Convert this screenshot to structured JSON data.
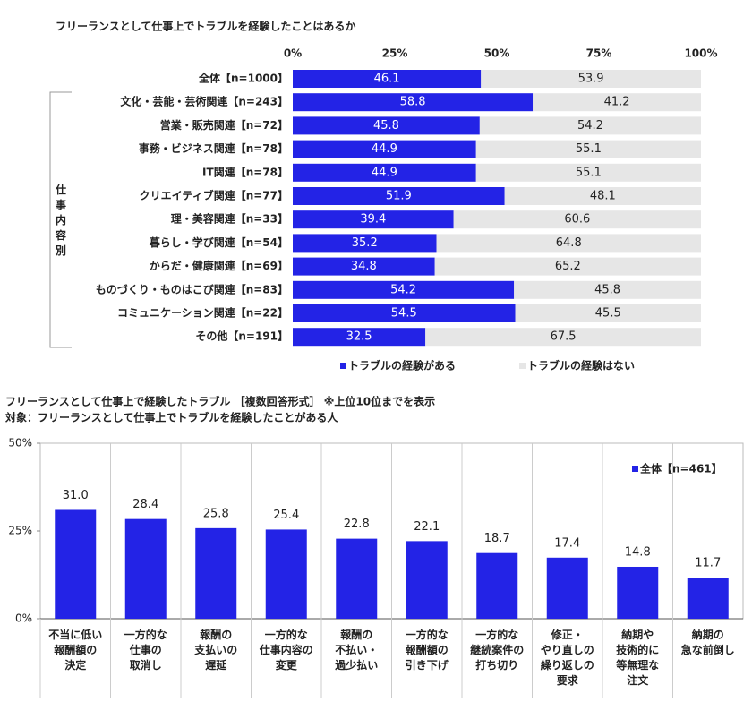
{
  "chart_data": [
    {
      "type": "stacked_barh",
      "title": "フリーランスとして仕事上でトラブルを経験したことはあるか",
      "categories": [
        "全体【n=1000】",
        "文化・芸能・芸術関連【n=243】",
        "営業・販売関連【n=72】",
        "事務・ビジネス関連【n=78】",
        "IT関連【n=78】",
        "クリエイティブ関連【n=77】",
        "理・美容関連【n=33】",
        "暮らし・学び関連【n=54】",
        "からだ・健康関連【n=69】",
        "ものづくり・ものはこび関連【n=83】",
        "コミュニケーション関連【n=22】",
        "その他【n=191】"
      ],
      "group_label": "仕事内容別",
      "series": [
        {
          "name": "トラブルの経験がある",
          "color": "#2323e6",
          "values": [
            46.1,
            58.8,
            45.8,
            44.9,
            44.9,
            51.9,
            39.4,
            35.2,
            34.8,
            54.2,
            54.5,
            32.5
          ]
        },
        {
          "name": "トラブルの経験はない",
          "color": "#e6e6e6",
          "values": [
            53.9,
            41.2,
            54.2,
            55.1,
            55.1,
            48.1,
            60.6,
            64.8,
            65.2,
            45.8,
            45.5,
            67.5
          ]
        }
      ],
      "xlim": [
        0,
        100
      ],
      "xticks": [
        {
          "value": 0,
          "label": "0%"
        },
        {
          "value": 25,
          "label": "25%"
        },
        {
          "value": 50,
          "label": "50%"
        },
        {
          "value": 75,
          "label": "75%"
        },
        {
          "value": 100,
          "label": "100%"
        }
      ],
      "legend": "bottom"
    },
    {
      "type": "bar",
      "title": "フリーランスとして仕事上で経験したトラブル ［複数回答形式］ ※上位10位までを表示",
      "subtitle": "対象：フリーランスとして仕事上でトラブルを経験したことがある人",
      "categories": [
        "不当に低い\n報酬額の\n決定",
        "一方的な\n仕事の\n取消し",
        "報酬の\n支払いの\n遅延",
        "一方的な\n仕事内容の\n変更",
        "報酬の\n不払い・\n過少払い",
        "一方的な\n報酬額の\n引き下げ",
        "一方的な\n継続案件の\n打ち切り",
        "修正・\nやり直しの\n繰り返しの\n要求",
        "納期や\n技術的に\n等無理な\n注文",
        "納期の\n急な前倒し"
      ],
      "series": [
        {
          "name": "全体【n=461】",
          "color": "#2323e6",
          "values": [
            31.0,
            28.4,
            25.8,
            25.4,
            22.8,
            22.1,
            18.7,
            17.4,
            14.8,
            11.7
          ],
          "value_labels": [
            "31.0",
            "28.4",
            "25.8",
            "25.4",
            "22.8",
            "22.1",
            "18.7",
            "17.4",
            "14.8",
            "11.7"
          ]
        }
      ],
      "ylim": [
        0,
        50
      ],
      "yticks": [
        {
          "value": 0,
          "label": "0%"
        },
        {
          "value": 25,
          "label": "25%"
        },
        {
          "value": 50,
          "label": "50%"
        }
      ],
      "legend": "top-right"
    }
  ]
}
